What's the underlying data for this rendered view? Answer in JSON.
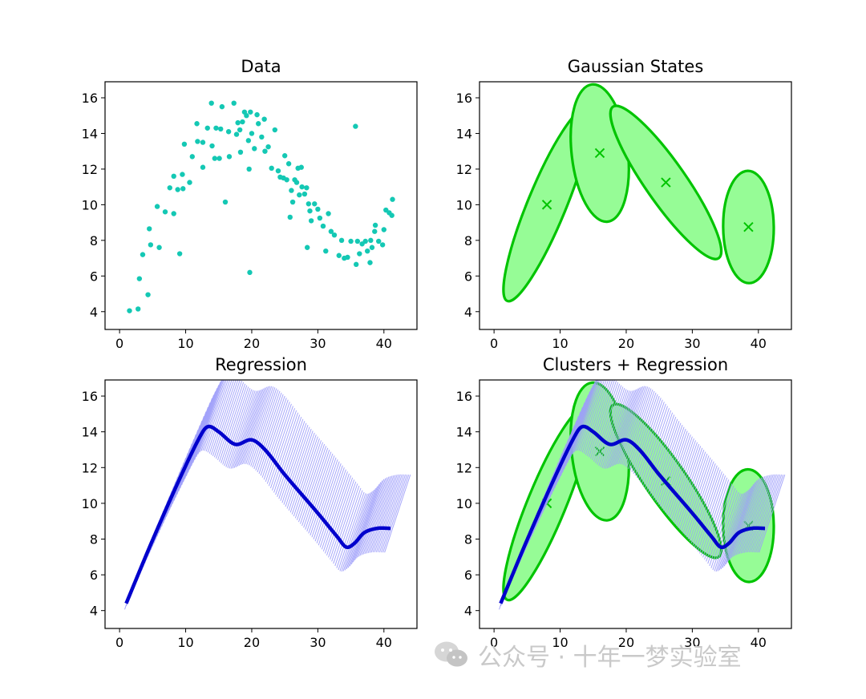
{
  "chart_data": [
    {
      "id": "data",
      "type": "scatter",
      "title": "Data",
      "xlim": [
        -2.2,
        45.0
      ],
      "ylim": [
        3.0,
        16.9
      ],
      "xticks": [
        0,
        10,
        20,
        30,
        40
      ],
      "yticks": [
        4,
        6,
        8,
        10,
        12,
        14,
        16
      ],
      "marker_color": "#14c8b4",
      "points": [
        [
          1.5,
          4.05
        ],
        [
          2.8,
          4.15
        ],
        [
          3.0,
          5.85
        ],
        [
          3.5,
          7.2
        ],
        [
          4.3,
          4.95
        ],
        [
          4.5,
          8.65
        ],
        [
          4.7,
          7.75
        ],
        [
          5.7,
          9.9
        ],
        [
          6.0,
          7.6
        ],
        [
          6.9,
          9.6
        ],
        [
          7.6,
          10.95
        ],
        [
          8.2,
          9.5
        ],
        [
          8.2,
          11.6
        ],
        [
          8.8,
          10.85
        ],
        [
          9.1,
          7.25
        ],
        [
          9.5,
          11.7
        ],
        [
          9.6,
          10.9
        ],
        [
          9.8,
          13.4
        ],
        [
          10.6,
          11.25
        ],
        [
          11.0,
          12.7
        ],
        [
          11.7,
          14.55
        ],
        [
          11.8,
          13.55
        ],
        [
          12.6,
          12.1
        ],
        [
          12.6,
          13.5
        ],
        [
          13.3,
          14.3
        ],
        [
          13.9,
          15.7
        ],
        [
          14.0,
          13.3
        ],
        [
          14.4,
          12.6
        ],
        [
          14.6,
          14.3
        ],
        [
          15.1,
          12.6
        ],
        [
          15.3,
          14.25
        ],
        [
          15.5,
          15.5
        ],
        [
          16.0,
          10.15
        ],
        [
          16.5,
          14.1
        ],
        [
          16.6,
          12.7
        ],
        [
          17.3,
          15.7
        ],
        [
          17.7,
          13.95
        ],
        [
          17.9,
          14.6
        ],
        [
          18.2,
          14.2
        ],
        [
          18.3,
          12.95
        ],
        [
          18.6,
          14.65
        ],
        [
          18.9,
          15.2
        ],
        [
          19.2,
          15.0
        ],
        [
          19.5,
          13.6
        ],
        [
          19.6,
          12.0
        ],
        [
          19.7,
          6.2
        ],
        [
          19.8,
          15.2
        ],
        [
          20.0,
          14.0
        ],
        [
          20.4,
          13.15
        ],
        [
          20.8,
          15.05
        ],
        [
          21.0,
          14.55
        ],
        [
          21.5,
          13.8
        ],
        [
          21.9,
          14.8
        ],
        [
          22.0,
          13.0
        ],
        [
          22.5,
          13.25
        ],
        [
          23.0,
          12.05
        ],
        [
          23.5,
          14.2
        ],
        [
          24.0,
          11.9
        ],
        [
          24.3,
          11.55
        ],
        [
          24.8,
          11.5
        ],
        [
          25.0,
          12.75
        ],
        [
          25.3,
          11.4
        ],
        [
          25.6,
          12.3
        ],
        [
          25.8,
          9.3
        ],
        [
          26.0,
          10.8
        ],
        [
          26.2,
          10.15
        ],
        [
          26.5,
          11.4
        ],
        [
          26.8,
          11.25
        ],
        [
          27.0,
          12.05
        ],
        [
          27.2,
          10.55
        ],
        [
          27.5,
          12.1
        ],
        [
          27.6,
          11.0
        ],
        [
          28.0,
          10.6
        ],
        [
          28.3,
          10.95
        ],
        [
          28.4,
          7.6
        ],
        [
          28.6,
          10.05
        ],
        [
          28.8,
          9.65
        ],
        [
          29.0,
          9.1
        ],
        [
          29.5,
          10.05
        ],
        [
          30.0,
          9.75
        ],
        [
          30.3,
          9.25
        ],
        [
          30.8,
          8.8
        ],
        [
          31.2,
          7.4
        ],
        [
          31.6,
          9.5
        ],
        [
          32.0,
          8.5
        ],
        [
          32.5,
          8.3
        ],
        [
          33.2,
          7.15
        ],
        [
          33.6,
          8.0
        ],
        [
          34.0,
          7.0
        ],
        [
          34.5,
          7.05
        ],
        [
          35.0,
          7.95
        ],
        [
          35.7,
          14.4
        ],
        [
          35.8,
          6.65
        ],
        [
          36.0,
          7.95
        ],
        [
          36.3,
          7.25
        ],
        [
          36.7,
          7.8
        ],
        [
          37.2,
          7.95
        ],
        [
          37.5,
          7.4
        ],
        [
          37.9,
          6.75
        ],
        [
          38.0,
          8.0
        ],
        [
          38.2,
          7.6
        ],
        [
          38.6,
          8.5
        ],
        [
          38.7,
          8.85
        ],
        [
          39.2,
          7.95
        ],
        [
          39.8,
          7.75
        ],
        [
          40.0,
          8.6
        ],
        [
          40.3,
          9.7
        ],
        [
          40.8,
          9.55
        ],
        [
          41.2,
          9.4
        ],
        [
          41.3,
          10.3
        ]
      ]
    },
    {
      "id": "gauss",
      "type": "scatter",
      "title": "Gaussian States",
      "xlim": [
        -2.2,
        45.0
      ],
      "ylim": [
        3.0,
        16.9
      ],
      "xticks": [
        0,
        10,
        20,
        30,
        40
      ],
      "yticks": [
        4,
        6,
        8,
        10,
        12,
        14,
        16
      ],
      "edge_color": "#00c400",
      "fill_color": "#96fc96",
      "centers": [
        [
          8.0,
          10.0
        ],
        [
          16.0,
          12.9
        ],
        [
          26.0,
          11.25
        ],
        [
          38.5,
          8.75
        ]
      ],
      "ellipses": [
        {
          "cx": 8.0,
          "cy": 10.0,
          "tips": [
            [
              2.0,
              4.6
            ],
            [
              14.0,
              15.4
            ]
          ],
          "half_width_x": 2.35
        },
        {
          "cx": 16.0,
          "cy": 12.9,
          "tips": [
            [
              14.8,
              16.75
            ],
            [
              17.2,
              9.05
            ]
          ],
          "half_width_x": 3.55
        },
        {
          "cx": 26.0,
          "cy": 11.25,
          "tips": [
            [
              18.0,
              15.5
            ],
            [
              34.0,
              7.0
            ]
          ],
          "half_width_x": 2.85
        },
        {
          "cx": 38.5,
          "cy": 8.75,
          "tips": [
            [
              38.4,
              11.9
            ],
            [
              38.6,
              5.6
            ]
          ],
          "half_width_x": 3.1
        }
      ]
    },
    {
      "id": "regr",
      "type": "line",
      "title": "Regression",
      "xlim": [
        -2.2,
        45.0
      ],
      "ylim": [
        3.0,
        16.9
      ],
      "xticks": [
        0,
        10,
        20,
        30,
        40
      ],
      "yticks": [
        4,
        6,
        8,
        10,
        12,
        14,
        16
      ],
      "line_color": "#0000cc",
      "band_color": "#9d9dfa",
      "band_dx": 3.0,
      "band_dy": 3.0,
      "x_range": [
        1.0,
        41.0
      ],
      "mean_knots": [
        [
          1.0,
          4.4
        ],
        [
          5.0,
          7.95
        ],
        [
          9.5,
          11.7
        ],
        [
          12.5,
          13.95
        ],
        [
          13.5,
          14.3
        ],
        [
          15.0,
          14.0
        ],
        [
          17.5,
          13.3
        ],
        [
          20.0,
          13.55
        ],
        [
          22.0,
          13.0
        ],
        [
          25.0,
          11.6
        ],
        [
          30.0,
          9.45
        ],
        [
          33.0,
          8.1
        ],
        [
          34.3,
          7.55
        ],
        [
          35.5,
          7.75
        ],
        [
          37.0,
          8.35
        ],
        [
          39.0,
          8.6
        ],
        [
          41.0,
          8.6
        ]
      ]
    },
    {
      "id": "combo",
      "type": "line",
      "title": "Clusters + Regression",
      "xlim": [
        -2.2,
        45.0
      ],
      "ylim": [
        3.0,
        16.9
      ],
      "xticks": [
        0,
        10,
        20,
        30,
        40
      ],
      "yticks": [
        4,
        6,
        8,
        10,
        12,
        14,
        16
      ],
      "combines": [
        "gauss",
        "regr"
      ]
    }
  ],
  "watermark": {
    "text": "公众号 · 十年一梦实验室",
    "icon": "wechat-icon",
    "color": "#c9c9c9"
  }
}
